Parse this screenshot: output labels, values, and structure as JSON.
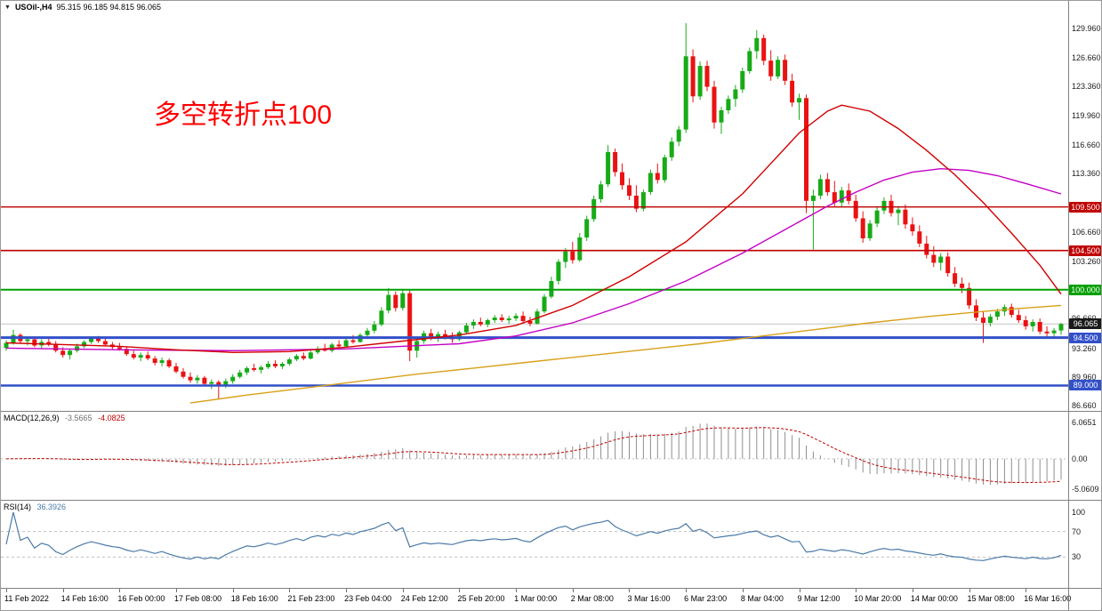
{
  "titlebar": {
    "dropdown_icon": "▼",
    "symbol": "USOil-,H4",
    "quote": "95.315 96.185 94.815 96.065"
  },
  "annotation": {
    "text": "多空转折点100",
    "color": "#ff0000"
  },
  "colors": {
    "up": "#17ab17",
    "down": "#ea1212",
    "ma_red": "#d00000",
    "ma_magenta": "#c400c4",
    "ma_orange": "#d8a018",
    "current_price_line": "#c4c4c4",
    "macd_hist": "#8f8f8f",
    "macd_signal": "#c00000",
    "rsi_line": "#4a7aa8",
    "level_dashed": "#c0c0c0"
  },
  "chart_data": {
    "type": "candlestick",
    "symbol": "USOil-",
    "timeframe": "H4",
    "title": "USOil- H4 candlestick chart with MACD and RSI",
    "ylim": [
      86.05,
      131.74
    ],
    "current_price": 96.065,
    "current_price_label": "96.065",
    "y_ticks": [
      "129.960",
      "126.660",
      "123.360",
      "119.960",
      "116.660",
      "113.360",
      "106.660",
      "103.260",
      "96.660",
      "93.260",
      "89.960",
      "86.660"
    ],
    "hlines": [
      {
        "price": 109.5,
        "label": "109.500",
        "color": "#c00000",
        "width": 1.4
      },
      {
        "price": 104.5,
        "label": "104.500",
        "color": "#c00000",
        "width": 1.6
      },
      {
        "price": 100.0,
        "label": "100.000",
        "color": "#00a000",
        "width": 2
      },
      {
        "price": 94.5,
        "label": "94.500",
        "color": "#3250c8",
        "width": 3
      },
      {
        "price": 89.0,
        "label": "89.000",
        "color": "#3250c8",
        "width": 2.4
      }
    ],
    "x_labels": [
      "11 Feb 2022",
      "14 Feb 16:00",
      "16 Feb 00:00",
      "17 Feb 08:00",
      "18 Feb 16:00",
      "21 Feb 23:00",
      "23 Feb 04:00",
      "24 Feb 12:00",
      "25 Feb 20:00",
      "1 Mar 00:00",
      "2 Mar 08:00",
      "3 Mar 16:00",
      "6 Mar 23:00",
      "8 Mar 04:00",
      "9 Mar 12:00",
      "10 Mar 20:00",
      "14 Mar 00:00",
      "15 Mar 08:00",
      "16 Mar 16:00"
    ],
    "candles_per_label": 8,
    "candles": [
      [
        93.3,
        94.2,
        93.0,
        93.9
      ],
      [
        93.9,
        95.4,
        93.7,
        94.8
      ],
      [
        94.8,
        95.0,
        93.9,
        94.1
      ],
      [
        94.1,
        94.5,
        93.6,
        94.3
      ],
      [
        94.3,
        94.6,
        93.4,
        93.6
      ],
      [
        93.6,
        94.3,
        93.2,
        94.0
      ],
      [
        94.0,
        94.4,
        93.5,
        93.8
      ],
      [
        93.8,
        94.1,
        92.8,
        93.0
      ],
      [
        93.0,
        93.4,
        92.2,
        92.5
      ],
      [
        92.5,
        93.2,
        92.0,
        93.0
      ],
      [
        93.0,
        93.8,
        92.8,
        93.5
      ],
      [
        93.5,
        94.2,
        93.3,
        94.0
      ],
      [
        94.0,
        94.6,
        93.8,
        94.4
      ],
      [
        94.4,
        94.7,
        93.9,
        94.1
      ],
      [
        94.1,
        94.4,
        93.5,
        93.7
      ],
      [
        93.7,
        94.0,
        93.2,
        93.4
      ],
      [
        93.4,
        93.9,
        93.0,
        93.2
      ],
      [
        93.2,
        93.5,
        92.4,
        92.6
      ],
      [
        92.6,
        93.0,
        92.0,
        92.2
      ],
      [
        92.2,
        92.8,
        91.8,
        92.5
      ],
      [
        92.5,
        92.9,
        91.9,
        92.1
      ],
      [
        92.1,
        92.4,
        91.3,
        91.6
      ],
      [
        91.6,
        92.2,
        91.2,
        91.9
      ],
      [
        91.9,
        92.1,
        91.0,
        91.2
      ],
      [
        91.2,
        91.6,
        90.4,
        90.6
      ],
      [
        90.6,
        91.0,
        89.8,
        90.0
      ],
      [
        90.0,
        90.5,
        89.3,
        89.6
      ],
      [
        89.6,
        90.2,
        89.2,
        89.9
      ],
      [
        89.9,
        90.1,
        88.9,
        89.2
      ],
      [
        89.2,
        89.7,
        88.6,
        89.4
      ],
      [
        89.4,
        89.6,
        87.5,
        88.9
      ],
      [
        88.9,
        89.8,
        88.7,
        89.5
      ],
      [
        89.5,
        90.3,
        89.2,
        90.0
      ],
      [
        90.0,
        90.8,
        89.8,
        90.5
      ],
      [
        90.5,
        91.2,
        90.2,
        91.0
      ],
      [
        91.0,
        91.5,
        90.6,
        90.8
      ],
      [
        90.8,
        91.3,
        90.4,
        91.1
      ],
      [
        91.1,
        91.8,
        90.9,
        91.5
      ],
      [
        91.5,
        91.9,
        91.0,
        91.2
      ],
      [
        91.2,
        91.7,
        90.9,
        91.5
      ],
      [
        91.5,
        92.2,
        91.3,
        92.0
      ],
      [
        92.0,
        92.6,
        91.8,
        92.4
      ],
      [
        92.4,
        92.8,
        91.9,
        92.1
      ],
      [
        92.1,
        93.0,
        92.0,
        92.8
      ],
      [
        92.8,
        93.5,
        92.6,
        93.2
      ],
      [
        93.2,
        93.8,
        92.9,
        93.0
      ],
      [
        93.0,
        93.9,
        92.8,
        93.7
      ],
      [
        93.7,
        94.2,
        93.3,
        93.5
      ],
      [
        93.5,
        94.4,
        93.4,
        94.2
      ],
      [
        94.2,
        94.8,
        93.8,
        94.0
      ],
      [
        94.0,
        95.0,
        93.9,
        94.8
      ],
      [
        94.8,
        95.6,
        94.5,
        95.3
      ],
      [
        95.3,
        96.4,
        95.0,
        96.0
      ],
      [
        96.0,
        98.0,
        95.8,
        97.6
      ],
      [
        97.6,
        100.2,
        97.3,
        99.4
      ],
      [
        99.4,
        99.8,
        97.5,
        97.9
      ],
      [
        97.9,
        100.1,
        97.6,
        99.6
      ],
      [
        99.6,
        99.9,
        91.8,
        93.0
      ],
      [
        93.0,
        94.5,
        92.2,
        94.1
      ],
      [
        94.1,
        95.3,
        93.8,
        95.0
      ],
      [
        95.0,
        95.5,
        94.2,
        94.5
      ],
      [
        94.5,
        95.2,
        94.0,
        94.9
      ],
      [
        94.9,
        95.4,
        94.3,
        94.6
      ],
      [
        94.6,
        95.1,
        93.9,
        94.3
      ],
      [
        94.3,
        95.3,
        94.1,
        95.1
      ],
      [
        95.1,
        96.2,
        94.9,
        95.9
      ],
      [
        95.9,
        96.6,
        95.5,
        96.3
      ],
      [
        96.3,
        96.8,
        95.8,
        96.0
      ],
      [
        96.0,
        96.7,
        95.7,
        96.5
      ],
      [
        96.5,
        97.1,
        96.2,
        96.8
      ],
      [
        96.8,
        97.2,
        96.3,
        96.5
      ],
      [
        96.5,
        97.0,
        96.1,
        96.7
      ],
      [
        96.7,
        97.3,
        96.4,
        97.0
      ],
      [
        97.0,
        97.5,
        96.2,
        96.4
      ],
      [
        96.4,
        96.9,
        95.8,
        96.1
      ],
      [
        96.1,
        97.8,
        96.0,
        97.5
      ],
      [
        97.5,
        99.5,
        97.3,
        99.2
      ],
      [
        99.2,
        101.5,
        99.0,
        101.0
      ],
      [
        101.0,
        103.5,
        100.6,
        103.2
      ],
      [
        103.2,
        104.8,
        102.5,
        104.4
      ],
      [
        104.4,
        105.5,
        103.0,
        103.4
      ],
      [
        103.4,
        106.5,
        103.2,
        106.0
      ],
      [
        106.0,
        108.5,
        105.6,
        108.1
      ],
      [
        108.1,
        110.8,
        107.8,
        110.4
      ],
      [
        110.4,
        112.5,
        110.0,
        112.1
      ],
      [
        112.1,
        116.6,
        111.8,
        115.8
      ],
      [
        115.8,
        116.2,
        113.0,
        113.5
      ],
      [
        113.5,
        114.5,
        111.5,
        112.0
      ],
      [
        112.0,
        112.8,
        110.3,
        110.8
      ],
      [
        110.8,
        112.0,
        108.9,
        109.3
      ],
      [
        109.3,
        111.5,
        109.0,
        111.2
      ],
      [
        111.2,
        113.8,
        110.9,
        113.4
      ],
      [
        113.4,
        114.5,
        112.2,
        112.6
      ],
      [
        112.6,
        115.5,
        112.3,
        115.2
      ],
      [
        115.2,
        117.5,
        114.8,
        117.0
      ],
      [
        117.0,
        118.8,
        116.5,
        118.4
      ],
      [
        118.4,
        130.6,
        118.0,
        126.8
      ],
      [
        126.8,
        127.6,
        121.5,
        122.2
      ],
      [
        122.2,
        126.2,
        121.8,
        125.7
      ],
      [
        125.7,
        126.3,
        122.8,
        123.3
      ],
      [
        123.3,
        124.0,
        118.5,
        119.2
      ],
      [
        119.2,
        121.0,
        117.9,
        120.6
      ],
      [
        120.6,
        122.3,
        120.2,
        121.9
      ],
      [
        121.9,
        123.5,
        121.0,
        123.0
      ],
      [
        123.0,
        125.5,
        122.6,
        125.1
      ],
      [
        125.1,
        127.8,
        124.8,
        127.4
      ],
      [
        127.4,
        129.8,
        126.5,
        128.9
      ],
      [
        128.9,
        129.3,
        125.8,
        126.3
      ],
      [
        126.3,
        127.5,
        124.0,
        124.5
      ],
      [
        124.5,
        126.8,
        124.2,
        126.4
      ],
      [
        126.4,
        127.0,
        123.5,
        124.0
      ],
      [
        124.0,
        124.8,
        121.0,
        121.5
      ],
      [
        121.5,
        122.5,
        119.5,
        122.0
      ],
      [
        122.0,
        122.4,
        108.8,
        110.2
      ],
      [
        110.2,
        111.5,
        104.6,
        110.8
      ],
      [
        110.8,
        113.2,
        110.4,
        112.7
      ],
      [
        112.7,
        113.4,
        110.8,
        111.2
      ],
      [
        111.2,
        112.5,
        109.6,
        110.0
      ],
      [
        110.0,
        111.8,
        109.5,
        111.4
      ],
      [
        111.4,
        112.2,
        109.8,
        110.2
      ],
      [
        110.2,
        110.9,
        107.8,
        108.2
      ],
      [
        108.2,
        109.0,
        105.4,
        105.9
      ],
      [
        105.9,
        108.0,
        105.6,
        107.6
      ],
      [
        107.6,
        109.5,
        107.2,
        109.1
      ],
      [
        109.1,
        110.6,
        108.7,
        110.2
      ],
      [
        110.2,
        110.9,
        108.4,
        108.8
      ],
      [
        108.8,
        109.6,
        107.4,
        109.2
      ],
      [
        109.2,
        109.8,
        107.0,
        107.5
      ],
      [
        107.5,
        108.3,
        106.2,
        106.7
      ],
      [
        106.7,
        107.4,
        104.9,
        105.3
      ],
      [
        105.3,
        106.2,
        103.6,
        104.0
      ],
      [
        104.0,
        105.0,
        102.6,
        103.1
      ],
      [
        103.1,
        104.2,
        102.2,
        103.8
      ],
      [
        103.8,
        104.3,
        101.5,
        101.9
      ],
      [
        101.9,
        102.6,
        100.3,
        100.7
      ],
      [
        100.7,
        101.4,
        99.6,
        100.2
      ],
      [
        100.2,
        100.8,
        97.8,
        98.2
      ],
      [
        98.2,
        98.9,
        96.4,
        96.8
      ],
      [
        96.8,
        97.5,
        93.9,
        96.2
      ],
      [
        96.2,
        97.2,
        95.8,
        96.9
      ],
      [
        96.9,
        97.8,
        96.5,
        97.5
      ],
      [
        97.5,
        98.3,
        97.0,
        98.0
      ],
      [
        98.0,
        98.4,
        96.8,
        97.1
      ],
      [
        97.1,
        97.7,
        96.2,
        96.5
      ],
      [
        96.5,
        97.0,
        95.4,
        95.8
      ],
      [
        95.8,
        96.6,
        95.2,
        96.3
      ],
      [
        96.3,
        96.7,
        94.9,
        95.2
      ],
      [
        95.2,
        95.8,
        94.6,
        95.0
      ],
      [
        95.0,
        95.6,
        94.4,
        95.315
      ],
      [
        95.315,
        96.185,
        94.815,
        96.065
      ]
    ],
    "overlays": {
      "ma_red": [
        [
          0,
          93.9
        ],
        [
          8,
          93.7
        ],
        [
          16,
          93.5
        ],
        [
          24,
          93.1
        ],
        [
          32,
          92.8
        ],
        [
          40,
          92.9
        ],
        [
          48,
          93.4
        ],
        [
          56,
          94.1
        ],
        [
          64,
          94.8
        ],
        [
          72,
          95.9
        ],
        [
          80,
          98.2
        ],
        [
          88,
          101.5
        ],
        [
          96,
          105.5
        ],
        [
          104,
          111.0
        ],
        [
          108,
          114.5
        ],
        [
          112,
          118.0
        ],
        [
          116,
          120.5
        ],
        [
          118,
          121.2
        ],
        [
          122,
          120.5
        ],
        [
          126,
          118.5
        ],
        [
          130,
          116.0
        ],
        [
          134,
          113.2
        ],
        [
          138,
          110.0
        ],
        [
          142,
          106.5
        ],
        [
          146,
          102.8
        ],
        [
          149,
          99.5
        ]
      ],
      "ma_magenta": [
        [
          0,
          93.3
        ],
        [
          16,
          93.1
        ],
        [
          32,
          93.0
        ],
        [
          48,
          93.2
        ],
        [
          64,
          93.8
        ],
        [
          72,
          94.7
        ],
        [
          80,
          96.2
        ],
        [
          88,
          98.4
        ],
        [
          96,
          101.0
        ],
        [
          104,
          104.2
        ],
        [
          112,
          107.8
        ],
        [
          116,
          109.6
        ],
        [
          120,
          111.2
        ],
        [
          124,
          112.6
        ],
        [
          128,
          113.5
        ],
        [
          132,
          113.9
        ],
        [
          136,
          113.7
        ],
        [
          140,
          113.1
        ],
        [
          144,
          112.2
        ],
        [
          149,
          111.0
        ]
      ],
      "ma_orange": [
        [
          26,
          87.0
        ],
        [
          34,
          87.9
        ],
        [
          42,
          88.7
        ],
        [
          50,
          89.5
        ],
        [
          58,
          90.3
        ],
        [
          66,
          91.0
        ],
        [
          74,
          91.7
        ],
        [
          82,
          92.4
        ],
        [
          90,
          93.1
        ],
        [
          98,
          93.8
        ],
        [
          106,
          94.6
        ],
        [
          114,
          95.4
        ],
        [
          122,
          96.2
        ],
        [
          130,
          96.9
        ],
        [
          138,
          97.5
        ],
        [
          144,
          97.9
        ],
        [
          149,
          98.2
        ]
      ]
    },
    "indicators": {
      "macd": {
        "name": "MACD(12,26,9)",
        "params": [
          12,
          26,
          9
        ],
        "value_main": "-3.5665",
        "value_signal": "-4.0825",
        "scale_max": "6.0651",
        "scale_zero": "0.00",
        "scale_min": "-5.0609"
      },
      "rsi": {
        "name": "RSI(14)",
        "period": 14,
        "value": "36.3926",
        "levels": [
          70,
          30
        ],
        "scale_labels": [
          {
            "label": "100",
            "value": 100
          },
          {
            "label": "70",
            "value": 70
          },
          {
            "label": "30",
            "value": 30
          }
        ]
      }
    }
  }
}
